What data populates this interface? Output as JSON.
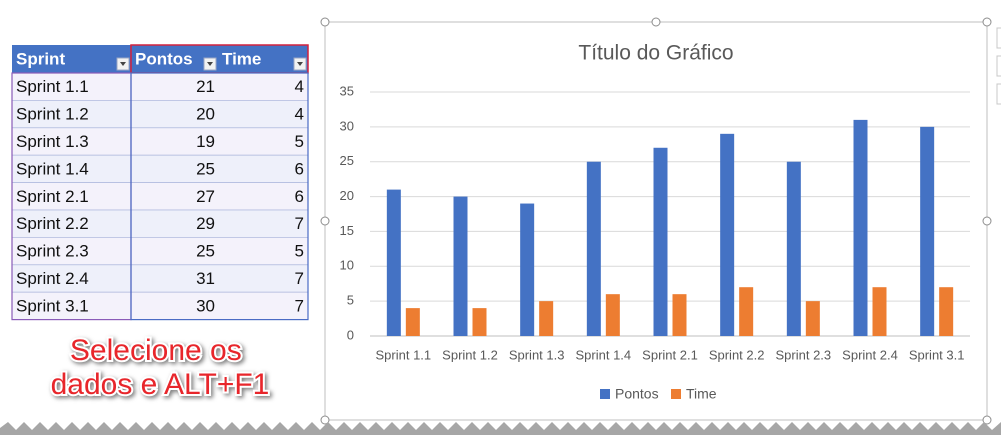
{
  "table": {
    "headers": [
      "Sprint",
      "Pontos",
      "Time"
    ],
    "rows": [
      [
        "Sprint 1.1",
        21,
        4
      ],
      [
        "Sprint 1.2",
        20,
        4
      ],
      [
        "Sprint 1.3",
        19,
        5
      ],
      [
        "Sprint 1.4",
        25,
        6
      ],
      [
        "Sprint 2.1",
        27,
        6
      ],
      [
        "Sprint 2.2",
        29,
        7
      ],
      [
        "Sprint 2.3",
        25,
        5
      ],
      [
        "Sprint 2.4",
        31,
        7
      ],
      [
        "Sprint 3.1",
        30,
        7
      ]
    ]
  },
  "annotation": [
    "Selecione os",
    "dados e ALT+F1"
  ],
  "chart_data": {
    "type": "bar",
    "title": "Título do Gráfico",
    "categories": [
      "Sprint 1.1",
      "Sprint 1.2",
      "Sprint 1.3",
      "Sprint 1.4",
      "Sprint 2.1",
      "Sprint 2.2",
      "Sprint 2.3",
      "Sprint 2.4",
      "Sprint 3.1"
    ],
    "series": [
      {
        "name": "Pontos",
        "color": "#4472c4",
        "values": [
          21,
          20,
          19,
          25,
          27,
          29,
          25,
          31,
          30
        ]
      },
      {
        "name": "Time",
        "color": "#ed7d31",
        "values": [
          4,
          4,
          5,
          6,
          6,
          7,
          5,
          7,
          7
        ]
      }
    ],
    "ylim": [
      0,
      35
    ],
    "yticks": [
      0,
      5,
      10,
      15,
      20,
      25,
      30,
      35
    ],
    "grid": true,
    "legend": "bottom"
  }
}
